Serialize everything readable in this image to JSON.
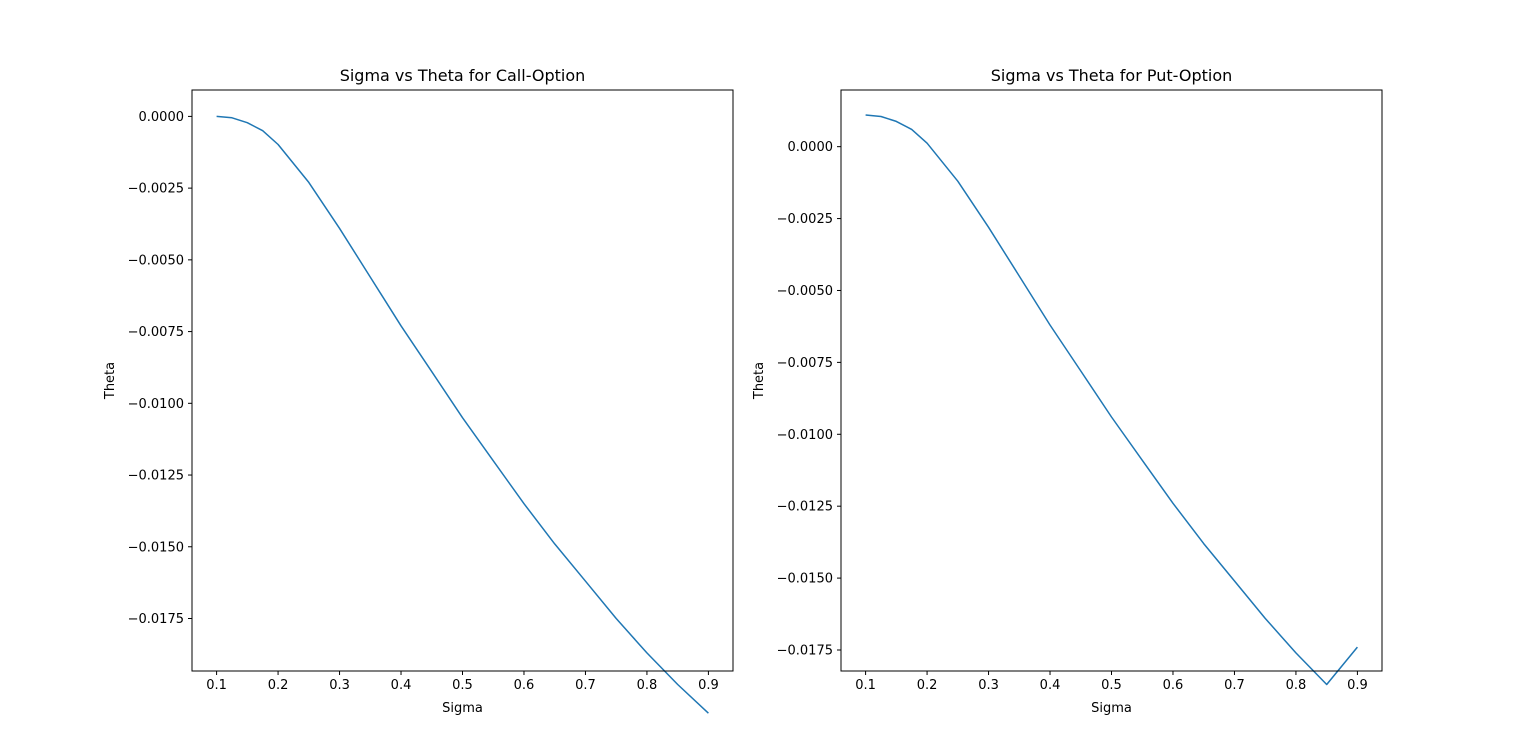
{
  "chart_data": [
    {
      "type": "line",
      "title": "Sigma vs Theta for Call-Option",
      "xlabel": "Sigma",
      "ylabel": "Theta",
      "xlim": [
        0.06,
        0.94
      ],
      "ylim": [
        -0.01933,
        0.00092
      ],
      "xticks": [
        0.1,
        0.2,
        0.3,
        0.4,
        0.5,
        0.6,
        0.7,
        0.8,
        0.9
      ],
      "xtick_labels": [
        "0.1",
        "0.2",
        "0.3",
        "0.4",
        "0.5",
        "0.6",
        "0.7",
        "0.8",
        "0.9"
      ],
      "yticks": [
        0.0,
        -0.0025,
        -0.005,
        -0.0075,
        -0.01,
        -0.0125,
        -0.015,
        -0.0175
      ],
      "ytick_labels": [
        "0.0000",
        "−0.0025",
        "−0.0050",
        "−0.0075",
        "−0.0100",
        "−0.0125",
        "−0.0150",
        "−0.0175"
      ],
      "grid": false,
      "color": "#1f77b4",
      "series": [
        {
          "x": [
            0.1,
            0.125,
            0.15,
            0.175,
            0.2,
            0.25,
            0.3,
            0.35,
            0.4,
            0.45,
            0.5,
            0.55,
            0.6,
            0.65,
            0.7,
            0.75,
            0.8,
            0.85,
            0.9
          ],
          "y": [
            0.0,
            -5e-05,
            -0.00022,
            -0.0005,
            -0.00098,
            -0.0023,
            -0.0039,
            -0.0056,
            -0.0073,
            -0.0089,
            -0.0105,
            -0.012,
            -0.0135,
            -0.0149,
            -0.0162,
            -0.0175,
            -0.0187,
            -0.0198,
            -0.0208
          ]
        }
      ]
    },
    {
      "type": "line",
      "title": "Sigma vs Theta for Put-Option",
      "xlabel": "Sigma",
      "ylabel": "Theta",
      "xlim": [
        0.06,
        0.94
      ],
      "ylim": [
        -0.01823,
        0.00197
      ],
      "xticks": [
        0.1,
        0.2,
        0.3,
        0.4,
        0.5,
        0.6,
        0.7,
        0.8,
        0.9
      ],
      "xtick_labels": [
        "0.1",
        "0.2",
        "0.3",
        "0.4",
        "0.5",
        "0.6",
        "0.7",
        "0.8",
        "0.9"
      ],
      "yticks": [
        0.0,
        -0.0025,
        -0.005,
        -0.0075,
        -0.01,
        -0.0125,
        -0.015,
        -0.0175
      ],
      "ytick_labels": [
        "0.0000",
        "−0.0025",
        "−0.0050",
        "−0.0075",
        "−0.0100",
        "−0.0125",
        "−0.0150",
        "−0.0175"
      ],
      "grid": false,
      "color": "#1f77b4",
      "series": [
        {
          "x": [
            0.1,
            0.125,
            0.15,
            0.175,
            0.2,
            0.25,
            0.3,
            0.35,
            0.4,
            0.45,
            0.5,
            0.55,
            0.6,
            0.65,
            0.7,
            0.75,
            0.8,
            0.85,
            0.9
          ],
          "y": [
            0.0011,
            0.00105,
            0.00088,
            0.0006,
            0.00012,
            -0.0012,
            -0.0028,
            -0.0045,
            -0.0062,
            -0.0078,
            -0.0094,
            -0.0109,
            -0.0124,
            -0.0138,
            -0.0151,
            -0.0164,
            -0.0176,
            -0.0187,
            -0.0174
          ]
        }
      ]
    }
  ]
}
